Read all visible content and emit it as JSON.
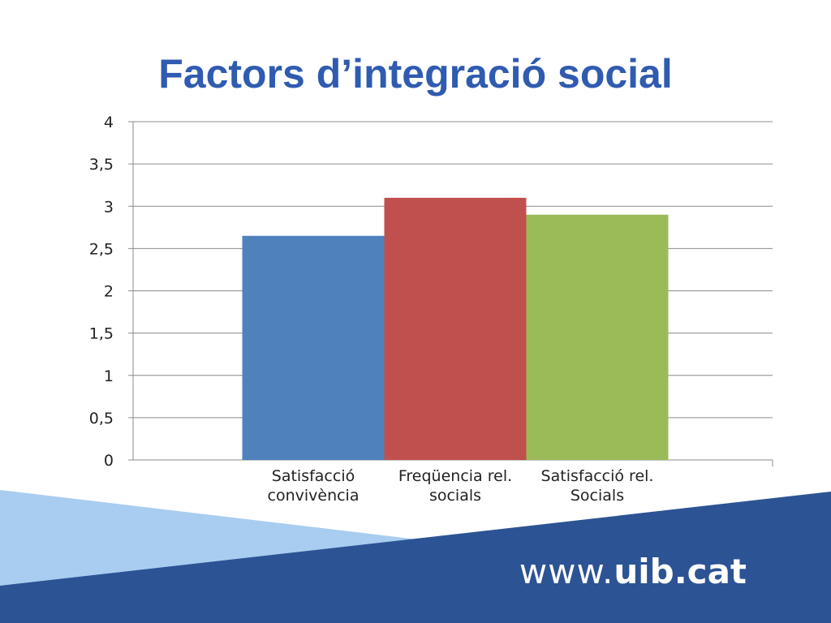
{
  "slide": {
    "title": "Factors d’integració social"
  },
  "footer": {
    "url_prefix": "www.",
    "url_domain": "uib.cat",
    "colors": {
      "dark_band": "#2c5394",
      "light_band": "#a8cdf0"
    }
  },
  "chart_data": {
    "type": "bar",
    "categories": [
      [
        "Satisfacció",
        "convivència"
      ],
      [
        "Freqüencia rel.",
        "socials"
      ],
      [
        "Satisfacció rel.",
        "Socials"
      ]
    ],
    "series": [
      {
        "values": [
          2.65,
          3.1,
          2.9
        ]
      }
    ],
    "bar_colors": [
      "#4f81bd",
      "#c0504d",
      "#9bbb59"
    ],
    "ylim": [
      0,
      4
    ],
    "yticks": [
      "0",
      "0,5",
      "1",
      "1,5",
      "2",
      "2,5",
      "3",
      "3,5",
      "4"
    ],
    "ytick_values": [
      0,
      0.5,
      1,
      1.5,
      2,
      2.5,
      3,
      3.5,
      4
    ],
    "grid": true,
    "legend": "none"
  }
}
